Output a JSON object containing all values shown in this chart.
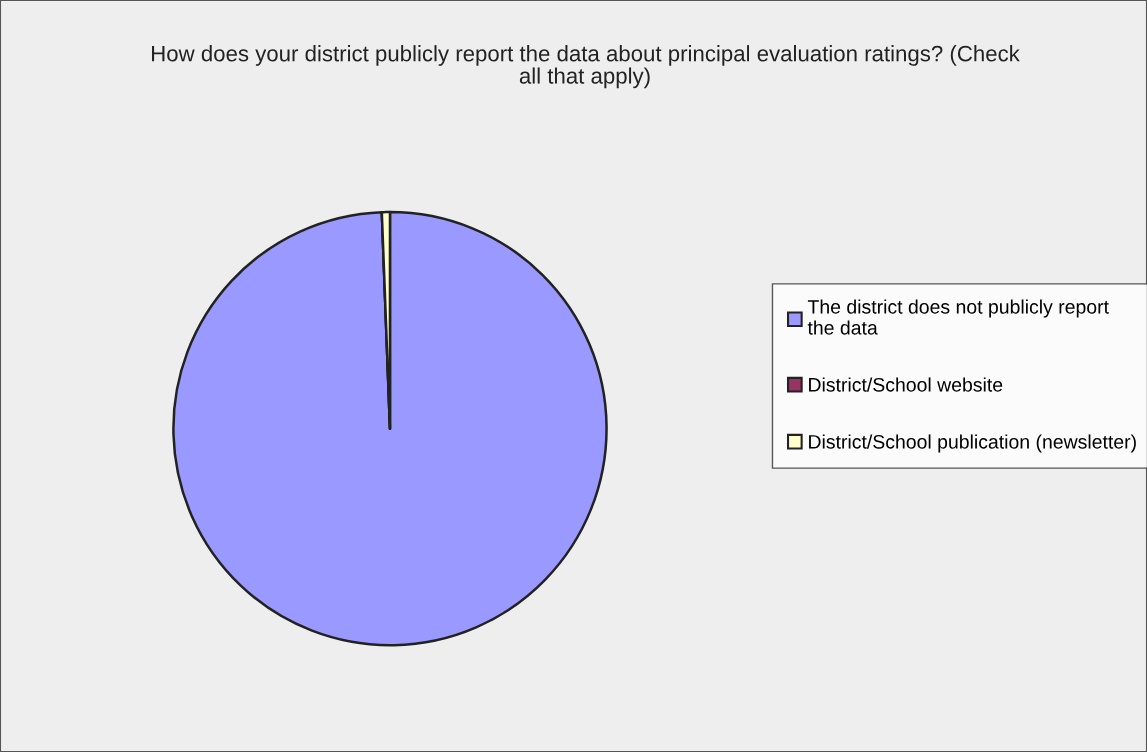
{
  "chart_data": {
    "type": "pie",
    "title": "How does your district publicly report the data about principal evaluation ratings? (Check all that apply)",
    "categories": [
      "The district does not publicly report the data",
      "District/School website",
      "District/School publication (newsletter)"
    ],
    "values": [
      99.4,
      0,
      0.6
    ],
    "colors": [
      "#9999ff",
      "#993366",
      "#ffffcc"
    ],
    "legend": "right"
  }
}
